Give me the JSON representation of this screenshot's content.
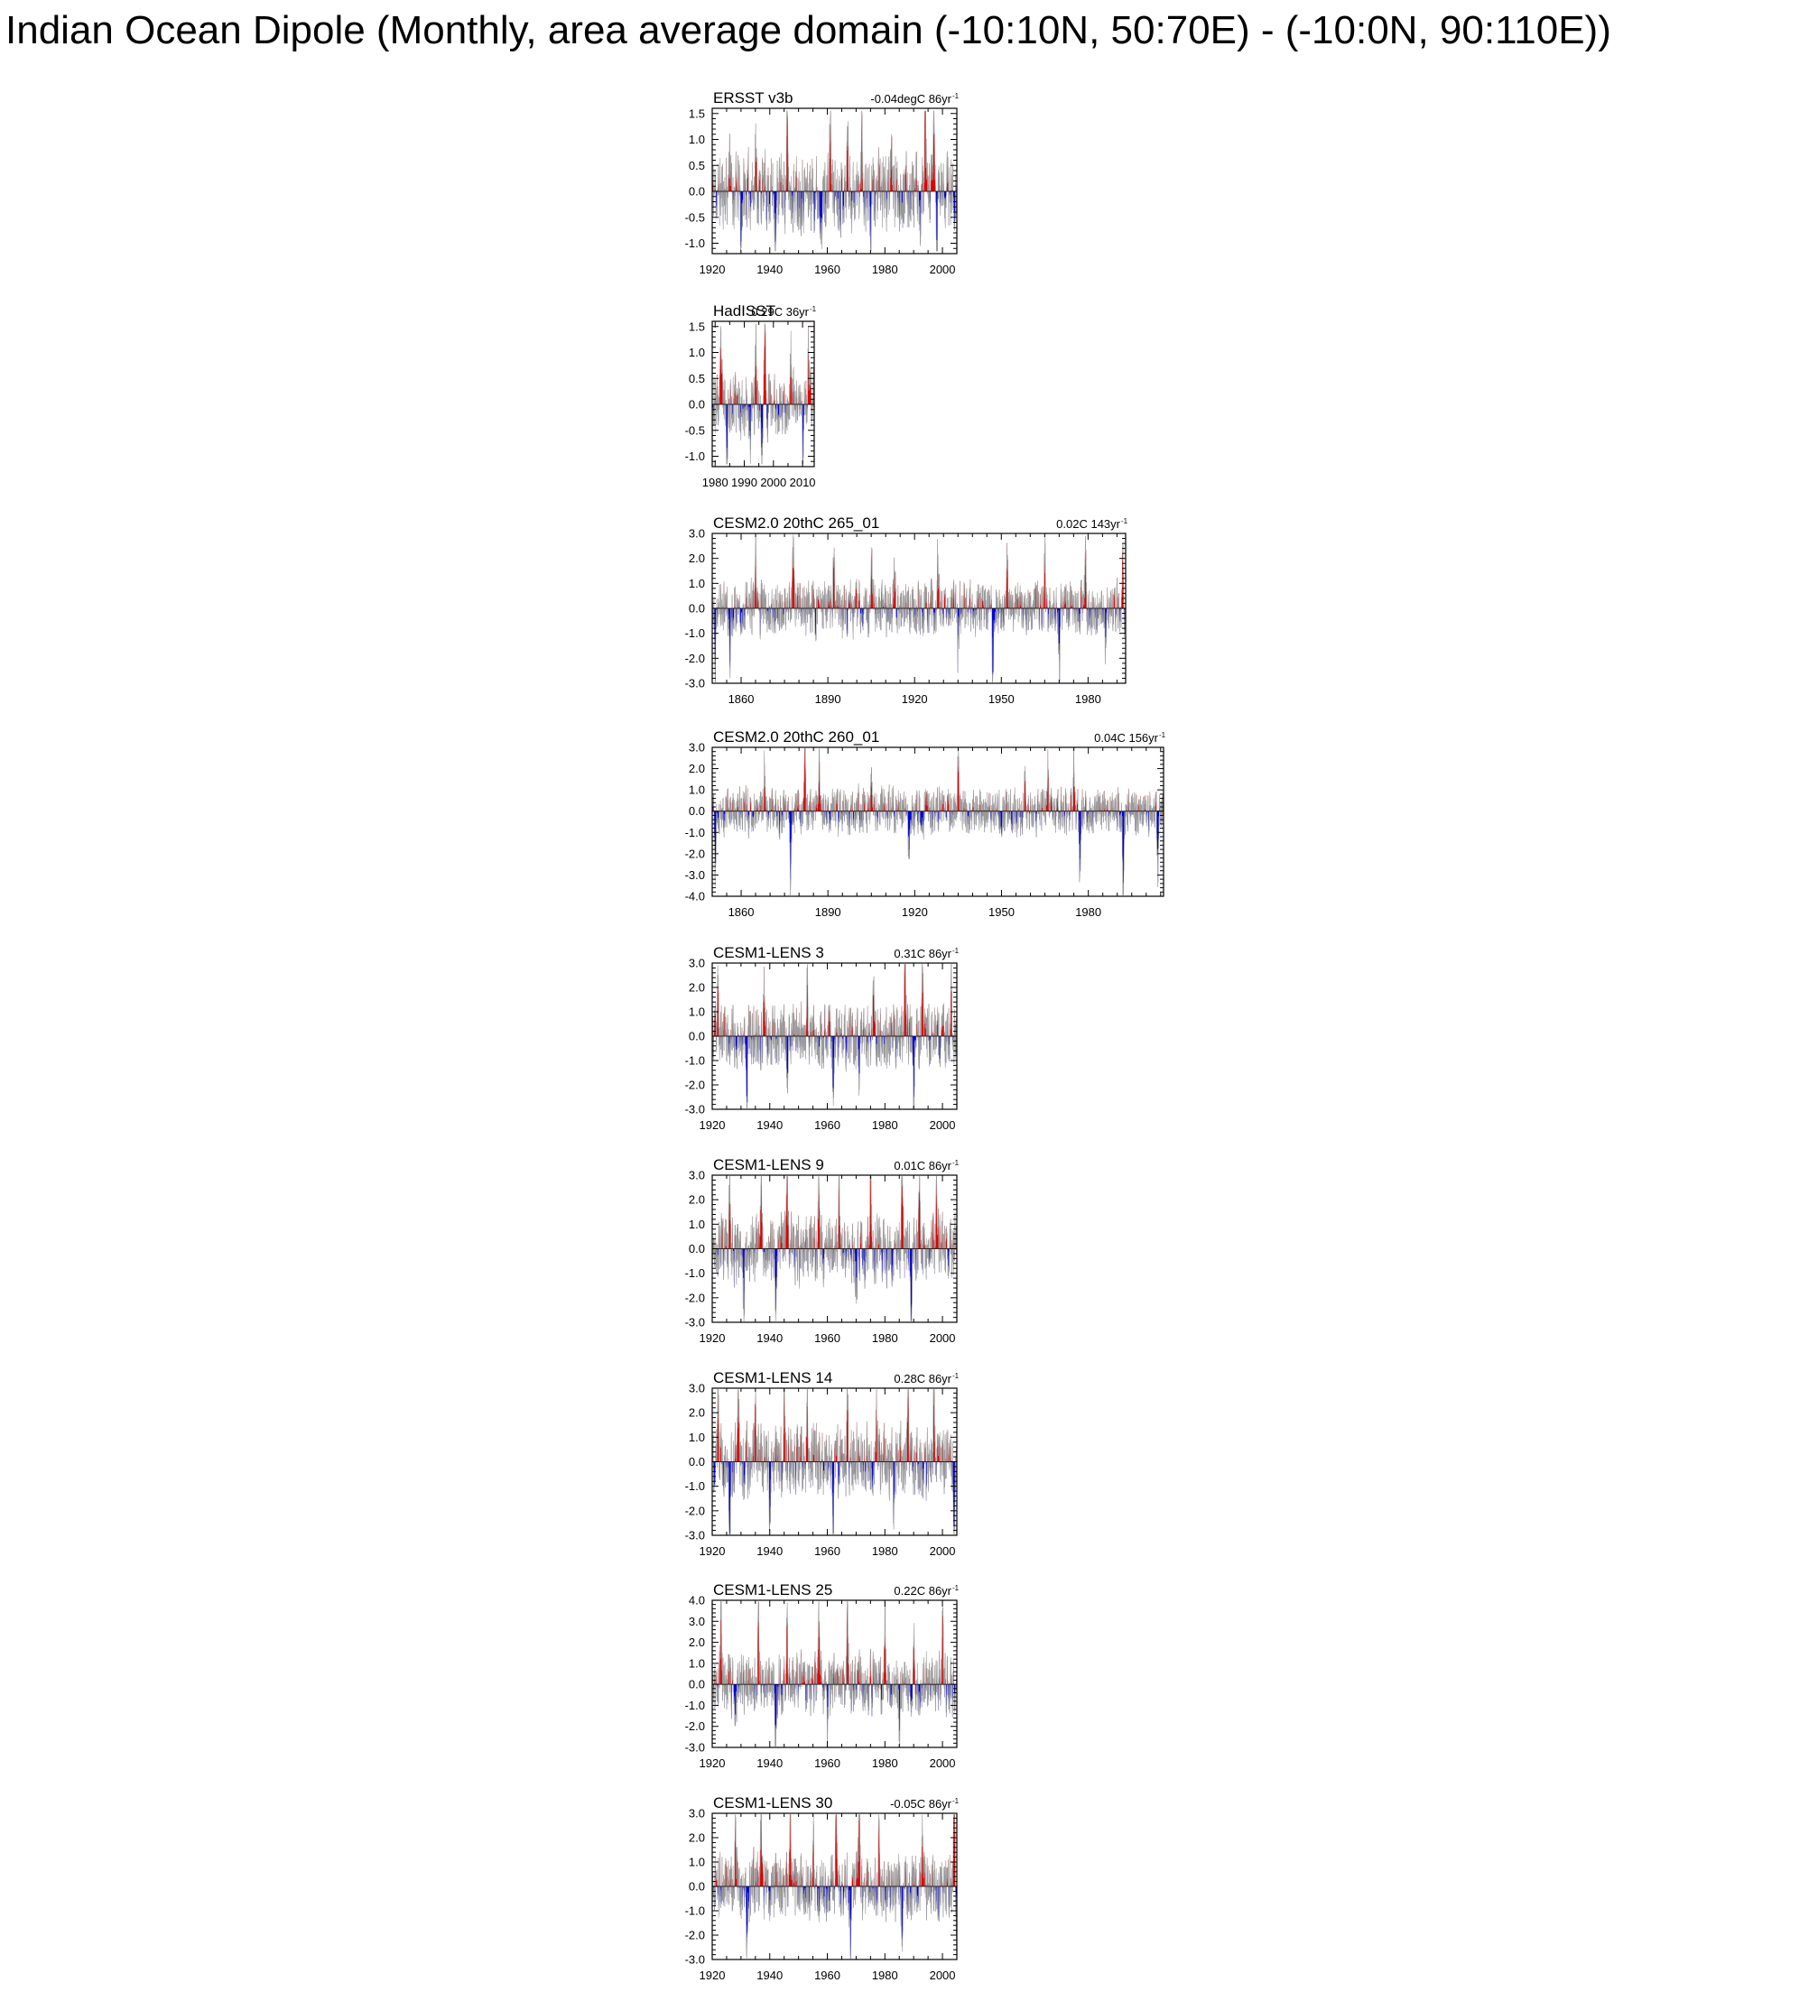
{
  "title": "Indian Ocean Dipole (Monthly, area average domain (-10:10N, 50:70E) - (-10:0N, 90:110E))",
  "colors": {
    "positive": "#e00000",
    "negative": "#0000dd",
    "line": "#9a9a9a",
    "frame": "#000000"
  },
  "chart_data": [
    {
      "type": "bar",
      "name": "ERSST v3b",
      "trend": "-0.04degC 86yr",
      "trend_sup": "-1",
      "x_range": [
        1920,
        2005
      ],
      "ylim": [
        -1.2,
        1.6
      ],
      "xticks": [
        1920,
        1940,
        1960,
        1980,
        2000
      ],
      "yticks": [
        "1.5",
        "1.0",
        "0.5",
        "0.0",
        "-0.5",
        "-1.0"
      ],
      "yvals": [
        1.5,
        1.0,
        0.5,
        0.0,
        -0.5,
        -1.0
      ],
      "amp": 0.8,
      "seed": 11,
      "events": [
        [
          1926,
          0.7
        ],
        [
          1935,
          0.75
        ],
        [
          1946,
          1.0
        ],
        [
          1961,
          1.1
        ],
        [
          1967,
          0.9
        ],
        [
          1972,
          0.95
        ],
        [
          1982,
          0.7
        ],
        [
          1994,
          1.0
        ],
        [
          1997,
          1.25
        ],
        [
          1930,
          -0.8
        ],
        [
          1942,
          -0.9
        ],
        [
          1958,
          -0.85
        ],
        [
          1975,
          -0.8
        ],
        [
          1992,
          -0.7
        ],
        [
          1998,
          -0.95
        ]
      ]
    },
    {
      "type": "bar",
      "name": "HadISST",
      "trend": "0.29C 36yr",
      "trend_sup": "-1",
      "x_range": [
        1979,
        2014
      ],
      "ylim": [
        -1.2,
        1.6
      ],
      "xticks": [
        1980,
        1990,
        2000,
        2010
      ],
      "yticks": [
        "1.5",
        "1.0",
        "0.5",
        "0.0",
        "-0.5",
        "-1.0"
      ],
      "yvals": [
        1.5,
        1.0,
        0.5,
        0.0,
        -0.5,
        -1.0
      ],
      "amp": 0.7,
      "seed": 23,
      "events": [
        [
          1982,
          0.8
        ],
        [
          1994,
          1.0
        ],
        [
          1997,
          1.45
        ],
        [
          2006,
          0.75
        ],
        [
          2012,
          0.65
        ],
        [
          1984,
          -0.7
        ],
        [
          1992,
          -0.8
        ],
        [
          1996,
          -0.95
        ],
        [
          2010,
          -0.55
        ]
      ]
    },
    {
      "type": "bar",
      "name": "CESM2.0 20thC 265_01",
      "trend": "0.02C 143yr",
      "trend_sup": "-1",
      "x_range": [
        1850,
        1993
      ],
      "ylim": [
        -3.0,
        3.0
      ],
      "xticks": [
        1860,
        1890,
        1920,
        1950,
        1980
      ],
      "yticks": [
        "3.0",
        "2.0",
        "1.0",
        "0.0",
        "-1.0",
        "-2.0",
        "-3.0"
      ],
      "yvals": [
        3.0,
        2.0,
        1.0,
        0.0,
        -1.0,
        -2.0,
        -3.0
      ],
      "amp": 1.2,
      "seed": 37,
      "events": [
        [
          1851,
          -2.5
        ],
        [
          1856,
          -1.8
        ],
        [
          1865,
          1.5
        ],
        [
          1878,
          1.6
        ],
        [
          1892,
          1.5
        ],
        [
          1905,
          1.7
        ],
        [
          1913,
          1.4
        ],
        [
          1928,
          1.8
        ],
        [
          1935,
          -1.2
        ],
        [
          1947,
          -2.2
        ],
        [
          1952,
          1.5
        ],
        [
          1965,
          1.7
        ],
        [
          1970,
          -1.8
        ],
        [
          1979,
          1.5
        ],
        [
          1986,
          -1.7
        ],
        [
          1992,
          1.6
        ]
      ]
    },
    {
      "type": "bar",
      "name": "CESM2.0 20thC 260_01",
      "trend": "0.04C 156yr",
      "trend_sup": "-1",
      "x_range": [
        1850,
        2006
      ],
      "ylim": [
        -4.0,
        3.0
      ],
      "xticks": [
        1860,
        1890,
        1920,
        1950,
        1980
      ],
      "yticks": [
        "3.0",
        "2.0",
        "1.0",
        "0.0",
        "-1.0",
        "-2.0",
        "-3.0",
        "-4.0"
      ],
      "yvals": [
        3.0,
        2.0,
        1.0,
        0.0,
        -1.0,
        -2.0,
        -3.0,
        -4.0
      ],
      "amp": 1.2,
      "seed": 41,
      "events": [
        [
          1851,
          -2.3
        ],
        [
          1868,
          1.6
        ],
        [
          1877,
          -2.6
        ],
        [
          1882,
          1.8
        ],
        [
          1887,
          1.9
        ],
        [
          1905,
          1.5
        ],
        [
          1918,
          -2.0
        ],
        [
          1935,
          1.8
        ],
        [
          1950,
          -1.7
        ],
        [
          1958,
          1.6
        ],
        [
          1966,
          1.7
        ],
        [
          1975,
          1.8
        ],
        [
          1977,
          -2.5
        ],
        [
          1992,
          -2.9
        ],
        [
          2004,
          -2.3
        ]
      ]
    },
    {
      "type": "bar",
      "name": "CESM1-LENS 3",
      "trend": "0.31C 86yr",
      "trend_sup": "-1",
      "x_range": [
        1920,
        2005
      ],
      "ylim": [
        -3.0,
        3.0
      ],
      "xticks": [
        1920,
        1940,
        1960,
        1980,
        2000
      ],
      "yticks": [
        "3.0",
        "2.0",
        "1.0",
        "0.0",
        "-1.0",
        "-2.0",
        "-3.0"
      ],
      "yvals": [
        3.0,
        2.0,
        1.0,
        0.0,
        -1.0,
        -2.0,
        -3.0
      ],
      "amp": 1.4,
      "seed": 53,
      "events": [
        [
          1922,
          1.6
        ],
        [
          1938,
          1.8
        ],
        [
          1953,
          1.6
        ],
        [
          1962,
          -1.6
        ],
        [
          1976,
          1.9
        ],
        [
          1987,
          2.6
        ],
        [
          1990,
          -2.4
        ],
        [
          1993,
          2.3
        ],
        [
          2003,
          2.4
        ],
        [
          1932,
          -1.8
        ],
        [
          1946,
          -1.7
        ],
        [
          1971,
          -1.7
        ]
      ]
    },
    {
      "type": "bar",
      "name": "CESM1-LENS 9",
      "trend": "0.01C 86yr",
      "trend_sup": "-1",
      "x_range": [
        1920,
        2005
      ],
      "ylim": [
        -3.0,
        3.0
      ],
      "xticks": [
        1920,
        1940,
        1960,
        1980,
        2000
      ],
      "yticks": [
        "3.0",
        "2.0",
        "1.0",
        "0.0",
        "-1.0",
        "-2.0",
        "-3.0"
      ],
      "yvals": [
        3.0,
        2.0,
        1.0,
        0.0,
        -1.0,
        -2.0,
        -3.0
      ],
      "amp": 1.5,
      "seed": 67,
      "events": [
        [
          1926,
          2.0
        ],
        [
          1937,
          2.5
        ],
        [
          1942,
          -2.3
        ],
        [
          1946,
          2.2
        ],
        [
          1957,
          1.9
        ],
        [
          1964,
          2.3
        ],
        [
          1975,
          2.1
        ],
        [
          1986,
          2.3
        ],
        [
          1992,
          2.4
        ],
        [
          1998,
          2.1
        ],
        [
          1989,
          -2.1
        ],
        [
          1970,
          -2.0
        ],
        [
          1931,
          -1.9
        ]
      ]
    },
    {
      "type": "bar",
      "name": "CESM1-LENS 14",
      "trend": "0.28C 86yr",
      "trend_sup": "-1",
      "x_range": [
        1920,
        2005
      ],
      "ylim": [
        -3.0,
        3.0
      ],
      "xticks": [
        1920,
        1940,
        1960,
        1980,
        2000
      ],
      "yticks": [
        "3.0",
        "2.0",
        "1.0",
        "0.0",
        "-1.0",
        "-2.0",
        "-3.0"
      ],
      "yvals": [
        3.0,
        2.0,
        1.0,
        0.0,
        -1.0,
        -2.0,
        -3.0
      ],
      "amp": 1.6,
      "seed": 79,
      "events": [
        [
          1922,
          2.2
        ],
        [
          1929,
          2.4
        ],
        [
          1935,
          2.4
        ],
        [
          1945,
          2.5
        ],
        [
          1953,
          2.2
        ],
        [
          1967,
          2.1
        ],
        [
          1977,
          2.3
        ],
        [
          1988,
          2.2
        ],
        [
          1997,
          2.6
        ],
        [
          1926,
          -2.5
        ],
        [
          1940,
          -2.2
        ],
        [
          1962,
          -2.1
        ],
        [
          1983,
          -2.0
        ],
        [
          2004,
          -2.0
        ]
      ]
    },
    {
      "type": "bar",
      "name": "CESM1-LENS 25",
      "trend": "0.22C 86yr",
      "trend_sup": "-1",
      "x_range": [
        1920,
        2005
      ],
      "ylim": [
        -3.0,
        4.0
      ],
      "xticks": [
        1920,
        1940,
        1960,
        1980,
        2000
      ],
      "yticks": [
        "4.0",
        "3.0",
        "2.0",
        "1.0",
        "0.0",
        "-1.0",
        "-2.0",
        "-3.0"
      ],
      "yvals": [
        4.0,
        3.0,
        2.0,
        1.0,
        0.0,
        -1.0,
        -2.0,
        -3.0
      ],
      "amp": 1.6,
      "seed": 83,
      "events": [
        [
          1923,
          2.8
        ],
        [
          1936,
          2.5
        ],
        [
          1946,
          2.4
        ],
        [
          1957,
          2.6
        ],
        [
          1967,
          3.0
        ],
        [
          1980,
          2.3
        ],
        [
          1990,
          2.5
        ],
        [
          2000,
          2.4
        ],
        [
          1928,
          -2.0
        ],
        [
          1942,
          -2.3
        ],
        [
          1960,
          -2.1
        ],
        [
          1985,
          -2.0
        ]
      ]
    },
    {
      "type": "bar",
      "name": "CESM1-LENS 30",
      "trend": "-0.05C 86yr",
      "trend_sup": "-1",
      "x_range": [
        1920,
        2005
      ],
      "ylim": [
        -3.0,
        3.0
      ],
      "xticks": [
        1920,
        1940,
        1960,
        1980,
        2000
      ],
      "yticks": [
        "3.0",
        "2.0",
        "1.0",
        "0.0",
        "-1.0",
        "-2.0",
        "-3.0"
      ],
      "yvals": [
        3.0,
        2.0,
        1.0,
        0.0,
        -1.0,
        -2.0,
        -3.0
      ],
      "amp": 1.5,
      "seed": 97,
      "events": [
        [
          1928,
          2.3
        ],
        [
          1937,
          2.4
        ],
        [
          1947,
          2.4
        ],
        [
          1955,
          2.2
        ],
        [
          1963,
          2.3
        ],
        [
          1971,
          2.6
        ],
        [
          1978,
          2.6
        ],
        [
          1993,
          2.1
        ],
        [
          2004,
          2.4
        ],
        [
          1932,
          -1.8
        ],
        [
          1968,
          -1.9
        ],
        [
          1986,
          -2.2
        ],
        [
          2005,
          -2.0
        ]
      ]
    }
  ]
}
